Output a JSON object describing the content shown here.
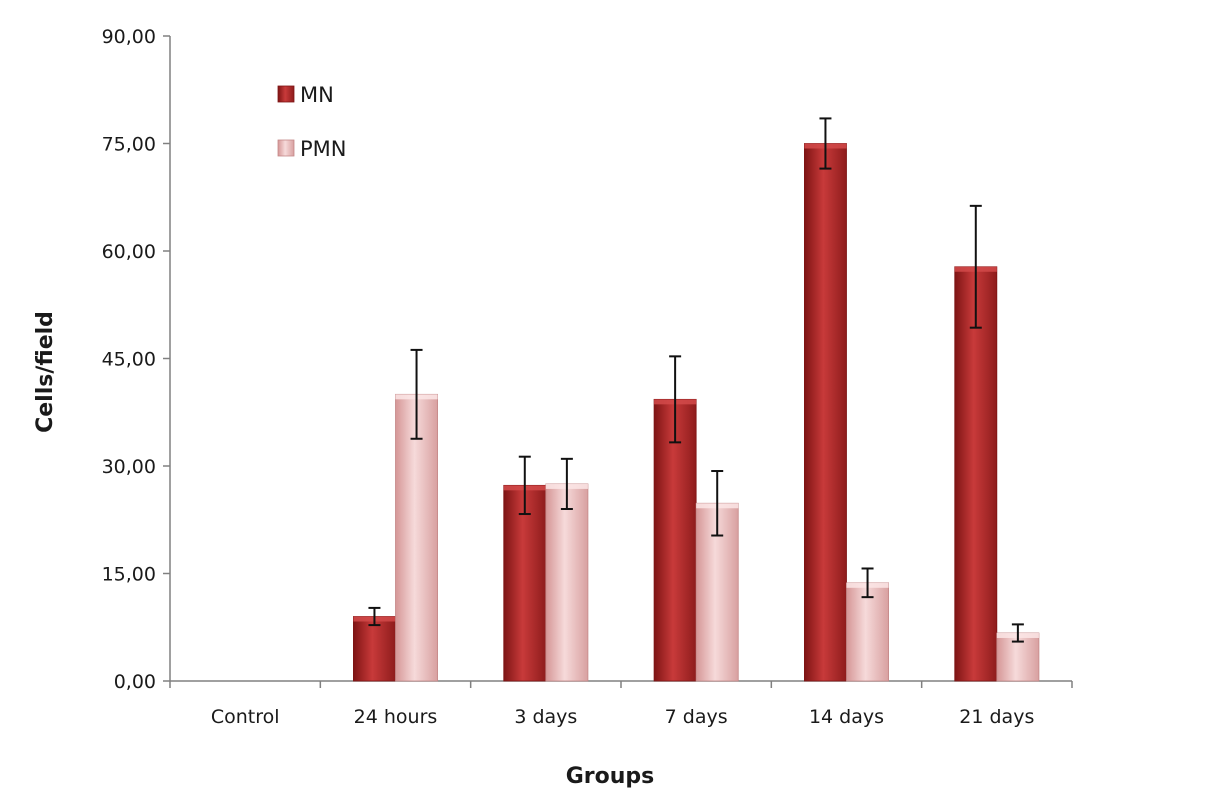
{
  "chart_data": {
    "type": "bar",
    "title": "",
    "xlabel": "Groups",
    "ylabel": "Cells/field",
    "categories": [
      "Control",
      "24 hours",
      "3 days",
      "7 days",
      "14 days",
      "21 days"
    ],
    "ylim": [
      0,
      90
    ],
    "yticks": [
      "0,00",
      "15,00",
      "30,00",
      "45,00",
      "60,00",
      "75,00",
      "90,00"
    ],
    "legend_position": "top-left",
    "grid": false,
    "series": [
      {
        "name": "MN",
        "color": "#b52b2b",
        "values": [
          0,
          9.0,
          27.3,
          39.3,
          75.0,
          57.8
        ],
        "error": [
          0,
          1.2,
          4.0,
          6.0,
          3.5,
          8.5
        ]
      },
      {
        "name": "PMN",
        "color": "#e6b2b2",
        "values": [
          0,
          40.0,
          27.5,
          24.8,
          13.7,
          6.7
        ],
        "error": [
          0,
          6.2,
          3.5,
          4.5,
          2.0,
          1.2
        ]
      }
    ]
  }
}
